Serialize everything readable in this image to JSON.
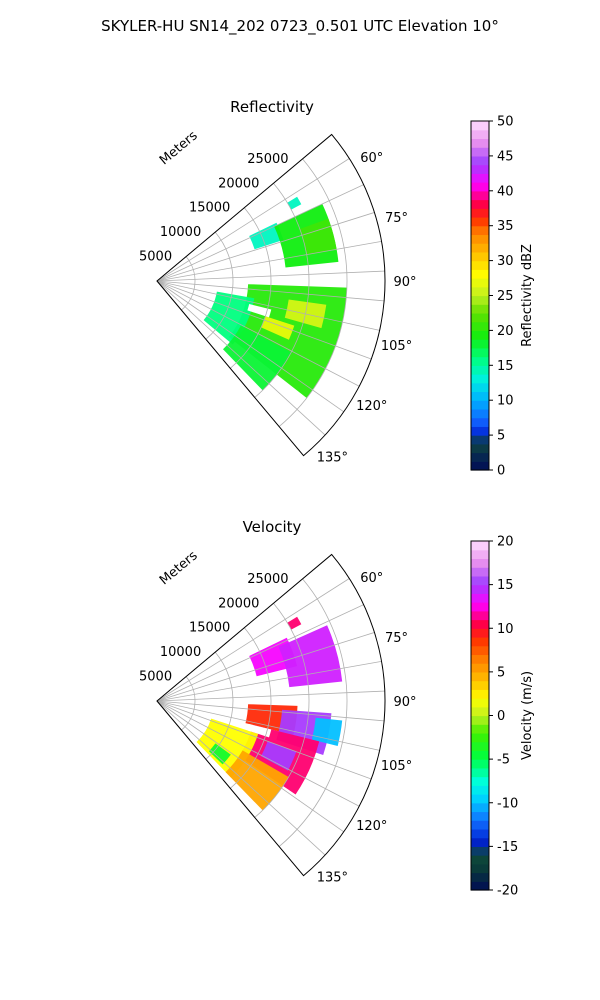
{
  "figure": {
    "suptitle": "SKYLER-HU  SN14_202  0723_0.501 UTC Elevation 10°"
  },
  "chart_data": [
    {
      "type": "heatmap",
      "title": "Reflectivity",
      "projection": "polar sector",
      "radial_axis_label": "Meters",
      "radial_tick_labels": [
        "5000",
        "10000",
        "15000",
        "20000",
        "25000"
      ],
      "radial_ticks": [
        5000,
        10000,
        15000,
        20000,
        25000
      ],
      "rlim": [
        0,
        30000
      ],
      "azimuth_tick_labels": [
        "60°",
        "75°",
        "90°",
        "105°",
        "120°",
        "135°"
      ],
      "azimuth_ticks": [
        60,
        75,
        90,
        105,
        120,
        135
      ],
      "azimuth_range": [
        50,
        140
      ],
      "grid": true,
      "colorbar": {
        "label": "Reflectivity dBZ",
        "range": [
          0,
          50
        ],
        "tick_labels": [
          "0",
          "5",
          "10",
          "15",
          "20",
          "25",
          "30",
          "35",
          "40",
          "45",
          "50"
        ]
      },
      "echo_regions": [
        {
          "az": [
            59,
            62
          ],
          "range_m": [
            20000,
            21500
          ],
          "value_dbz": 14
        },
        {
          "az": [
            64,
            72
          ],
          "range_m": [
            13500,
            17500
          ],
          "value_dbz": 14
        },
        {
          "az": [
            65,
            84
          ],
          "range_m": [
            17000,
            24000
          ],
          "value_dbz": 19
        },
        {
          "az": [
            70,
            80
          ],
          "range_m": [
            20000,
            24000
          ],
          "value_dbz": 21
        },
        {
          "az": [
            92,
            128
          ],
          "range_m": [
            12000,
            25000
          ],
          "value_dbz": 20
        },
        {
          "az": [
            98,
            106
          ],
          "range_m": [
            17500,
            22500
          ],
          "value_dbz": 26
        },
        {
          "az": [
            108,
            114
          ],
          "range_m": [
            15000,
            19000
          ],
          "value_dbz": 27
        },
        {
          "az": [
            100,
            130
          ],
          "range_m": [
            8000,
            13000
          ],
          "value_dbz": 16
        },
        {
          "az": [
            118,
            136
          ],
          "range_m": [
            12500,
            20000
          ],
          "value_dbz": 18
        },
        {
          "az": [
            104,
            108
          ],
          "range_m": [
            12500,
            15500
          ],
          "value_dbz": null
        }
      ]
    },
    {
      "type": "heatmap",
      "title": "Velocity",
      "projection": "polar sector",
      "radial_axis_label": "Meters",
      "radial_tick_labels": [
        "5000",
        "10000",
        "15000",
        "20000",
        "25000"
      ],
      "radial_ticks": [
        5000,
        10000,
        15000,
        20000,
        25000
      ],
      "rlim": [
        0,
        30000
      ],
      "azimuth_tick_labels": [
        "60°",
        "75°",
        "90°",
        "105°",
        "120°",
        "135°"
      ],
      "azimuth_ticks": [
        60,
        75,
        90,
        105,
        120,
        135
      ],
      "azimuth_range": [
        50,
        140
      ],
      "grid": true,
      "colorbar": {
        "label": "Velocity (m/s)",
        "range": [
          -20,
          20
        ],
        "tick_labels": [
          "-20",
          "-15",
          "-10",
          "-5",
          "0",
          "5",
          "10",
          "15",
          "20"
        ]
      },
      "echo_regions": [
        {
          "az": [
            59,
            62
          ],
          "range_m": [
            20000,
            21500
          ],
          "value_ms": 11
        },
        {
          "az": [
            64,
            76
          ],
          "range_m": [
            13500,
            19000
          ],
          "value_ms": 13
        },
        {
          "az": [
            66,
            84
          ],
          "range_m": [
            17500,
            24500
          ],
          "value_ms": 14
        },
        {
          "az": [
            92,
            104
          ],
          "range_m": [
            12000,
            18500
          ],
          "value_ms": 9
        },
        {
          "az": [
            94,
            108
          ],
          "range_m": [
            16500,
            23000
          ],
          "value_ms": 15
        },
        {
          "az": [
            96,
            104
          ],
          "range_m": [
            21000,
            24500
          ],
          "value_ms": -10
        },
        {
          "az": [
            104,
            124
          ],
          "range_m": [
            13000,
            22000
          ],
          "value_ms": 11
        },
        {
          "az": [
            110,
            118
          ],
          "range_m": [
            15500,
            19500
          ],
          "value_ms": 15
        },
        {
          "az": [
            108,
            136
          ],
          "range_m": [
            7500,
            14000
          ],
          "value_ms": 2
        },
        {
          "az": [
            120,
            136
          ],
          "range_m": [
            13000,
            20000
          ],
          "value_ms": 5
        },
        {
          "az": [
            126,
            134
          ],
          "range_m": [
            9500,
            12000
          ],
          "value_ms": -4
        },
        {
          "az": [
            104,
            108
          ],
          "range_m": [
            12500,
            15500
          ],
          "value_ms": null
        }
      ]
    }
  ]
}
